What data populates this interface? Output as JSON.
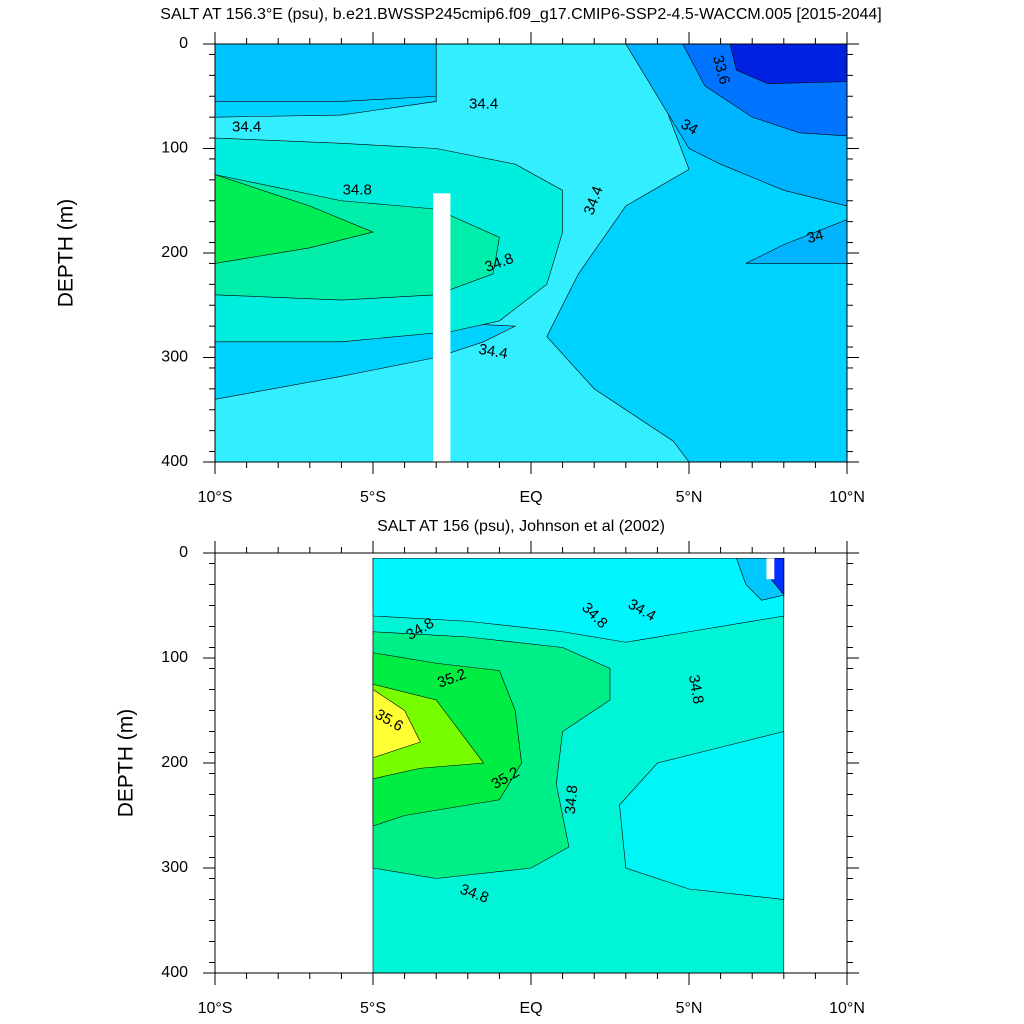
{
  "chart_data": [
    {
      "type": "contour",
      "title": "SALT AT 156.3°E (psu), b.e21.BWSSP245cmip6.f09_g17.CMIP6-SSP2-4.5-WACCM.005 [2015-2044]",
      "ylabel": "DEPTH (m)",
      "xlim": [
        -10,
        10
      ],
      "xticks": [
        {
          "value": -10,
          "label": "10°S"
        },
        {
          "value": -5,
          "label": "5°S"
        },
        {
          "value": 0,
          "label": "EQ"
        },
        {
          "value": 5,
          "label": "5°N"
        },
        {
          "value": 10,
          "label": "10°N"
        }
      ],
      "ylim": [
        400,
        0
      ],
      "yticks": [
        0,
        100,
        200,
        300,
        400
      ],
      "contour_labels": [
        "33.6",
        "34.4",
        "34.4",
        "34",
        "34.8",
        "34.4",
        "34",
        "34.8",
        "34.4"
      ]
    },
    {
      "type": "contour",
      "title": "SALT AT 156 (psu), Johnson et al (2002)",
      "ylabel": "DEPTH (m)",
      "xlim": [
        -10,
        10
      ],
      "xticks": [
        {
          "value": -10,
          "label": "10°S"
        },
        {
          "value": -5,
          "label": "5°S"
        },
        {
          "value": 0,
          "label": "EQ"
        },
        {
          "value": 5,
          "label": "5°N"
        },
        {
          "value": 10,
          "label": "10°N"
        }
      ],
      "ylim": [
        400,
        0
      ],
      "yticks": [
        0,
        100,
        200,
        300,
        400
      ],
      "contour_labels": [
        "34.8",
        "34.4",
        "34.8",
        "35.2",
        "34.8",
        "35.6",
        "35.2",
        "34.8",
        "34.8"
      ]
    }
  ]
}
